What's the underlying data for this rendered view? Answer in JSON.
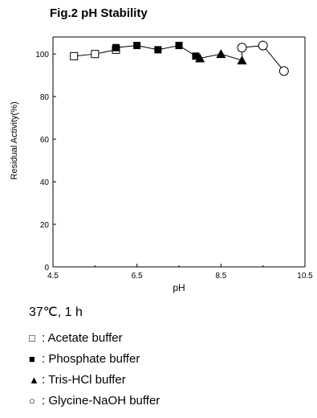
{
  "title": "Fig.2 pH Stability",
  "condition": "37℃, 1 h",
  "legend": [
    {
      "symbol": "□",
      "label": ": Acetate buffer"
    },
    {
      "symbol": "■",
      "label": ": Phosphate buffer"
    },
    {
      "symbol": "▲",
      "label": ": Tris-HCl buffer"
    },
    {
      "symbol": "○",
      "label": ": Glycine-NaOH buffer"
    }
  ],
  "chart_data": {
    "type": "line",
    "title": "Fig.2 pH Stability",
    "xlabel": "pH",
    "ylabel": "Residual Activity(%)",
    "xlim": [
      4.5,
      10.5
    ],
    "ylim": [
      0,
      100
    ],
    "x_ticks": [
      "4.5",
      "6.5",
      "8.5",
      "10.5"
    ],
    "y_ticks": [
      "0",
      "20",
      "40",
      "60",
      "80",
      "100"
    ],
    "grid": false,
    "series": [
      {
        "name": "Acetate buffer",
        "marker": "open-square",
        "x": [
          5.0,
          5.5,
          6.0
        ],
        "y": [
          99,
          100,
          102
        ]
      },
      {
        "name": "Phosphate buffer",
        "marker": "filled-square",
        "x": [
          6.0,
          6.5,
          7.0,
          7.5,
          7.9
        ],
        "y": [
          103,
          104,
          102,
          104,
          99
        ]
      },
      {
        "name": "Tris-HCl buffer",
        "marker": "filled-triangle",
        "x": [
          8.0,
          8.5,
          9.0
        ],
        "y": [
          98,
          100,
          97
        ]
      },
      {
        "name": "Glycine-NaOH buffer",
        "marker": "open-circle",
        "x": [
          9.0,
          9.5,
          10.0
        ],
        "y": [
          103,
          104,
          92
        ]
      }
    ]
  }
}
